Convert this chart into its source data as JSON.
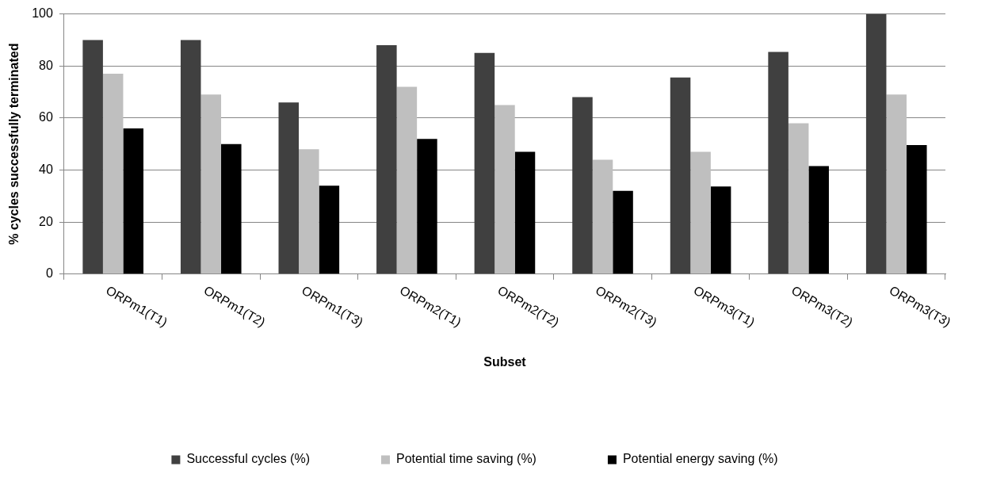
{
  "chart_data": {
    "type": "bar",
    "xlabel": "Subset",
    "ylabel": "% cycles successfully terminated",
    "categories": [
      "ORPm1(T1)",
      "ORPm1(T2)",
      "ORPm1(T3)",
      "ORPm2(T1)",
      "ORPm2(T2)",
      "ORPm2(T3)",
      "ORPm3(T1)",
      "ORPm3(T2)",
      "ORPm3(T3)"
    ],
    "series": [
      {
        "name": "Successful cycles (%)",
        "color": "#404040",
        "values": [
          90,
          90,
          66,
          88,
          85,
          68,
          75.6,
          85.4,
          100
        ]
      },
      {
        "name": "Potential time saving (%)",
        "color": "#bfbfbf",
        "values": [
          77,
          69,
          48,
          72,
          65,
          44,
          47,
          58,
          69
        ]
      },
      {
        "name": "Potential energy saving (%)",
        "color": "#000000",
        "values": [
          56,
          50,
          34,
          52,
          47,
          32,
          33.7,
          41.5,
          49.6
        ]
      }
    ],
    "ylim": [
      0,
      100
    ],
    "yticks": [
      0,
      20,
      40,
      60,
      80,
      100
    ],
    "grid": "y",
    "legend": "bottom"
  }
}
